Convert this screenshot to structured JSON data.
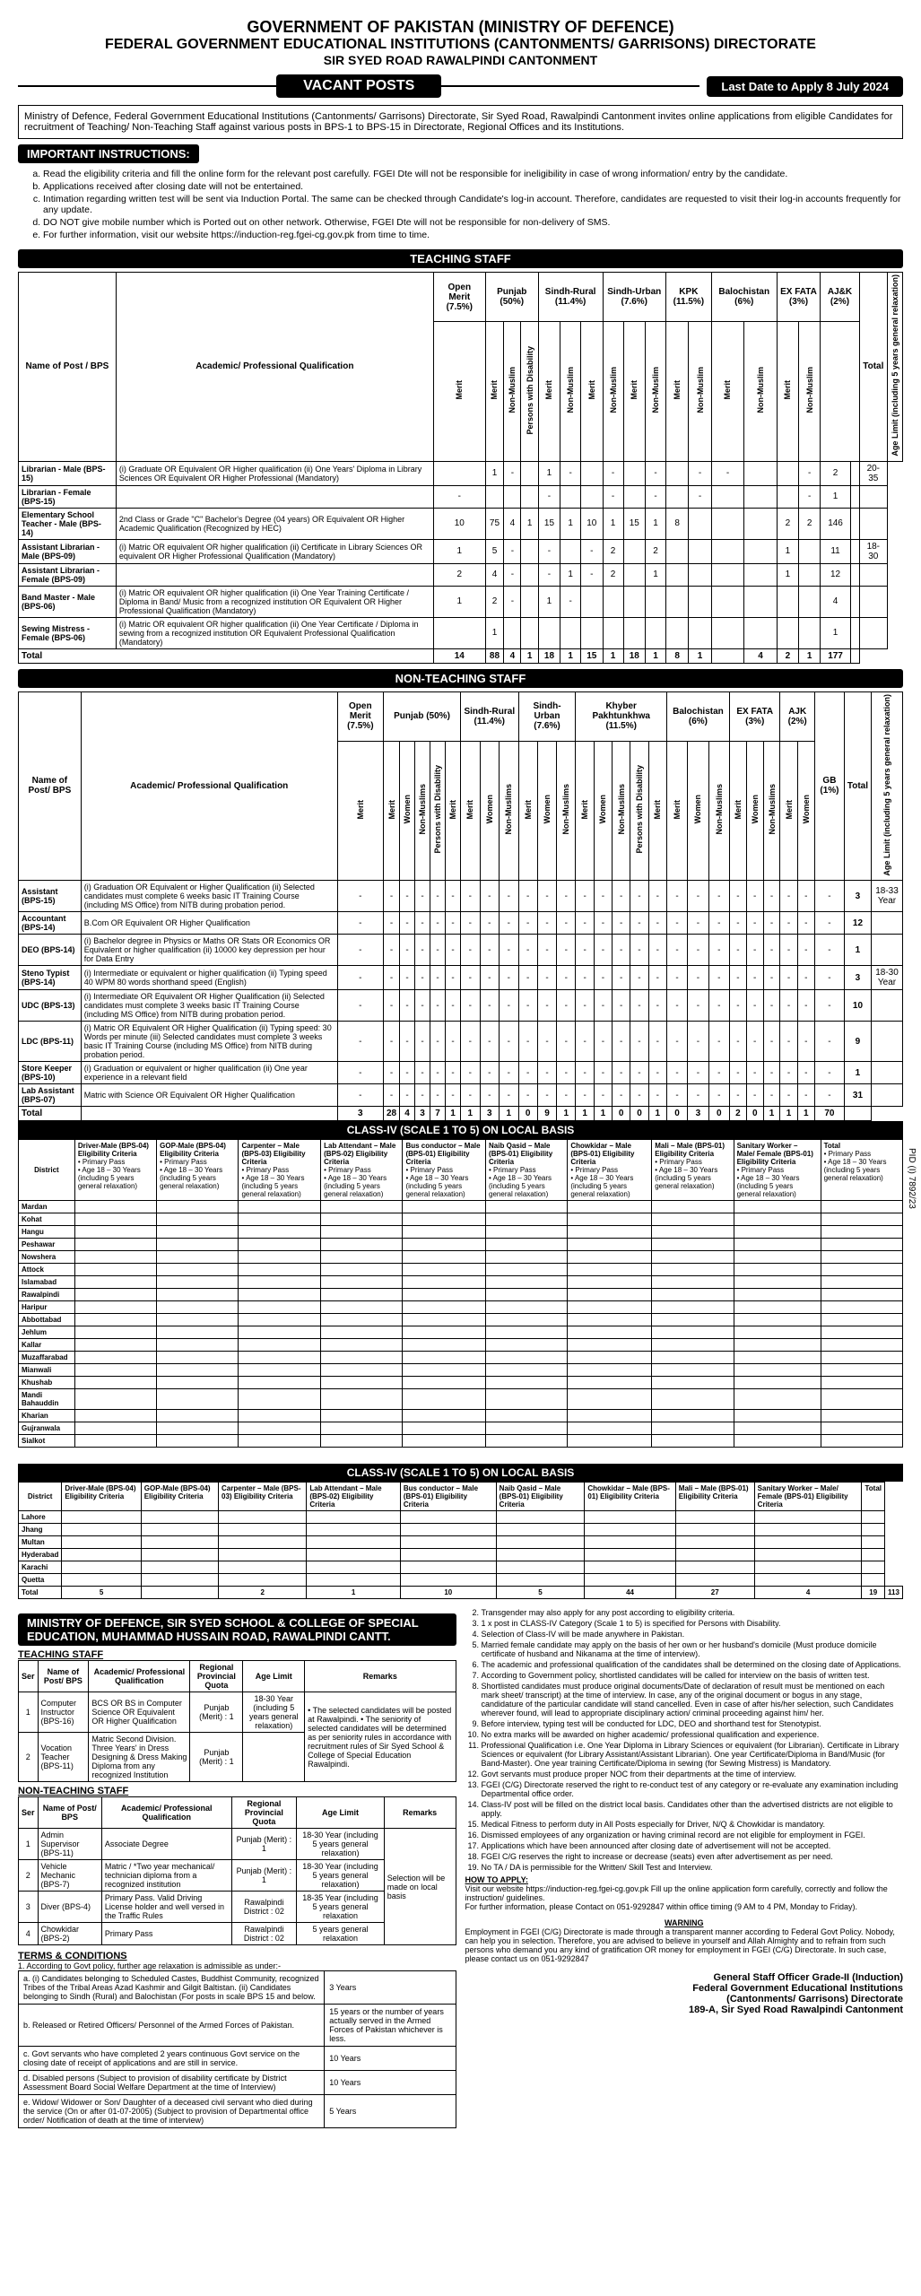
{
  "header": {
    "line1": "GOVERNMENT OF PAKISTAN (MINISTRY OF DEFENCE)",
    "line2": "FEDERAL GOVERNMENT EDUCATIONAL INSTITUTIONS (CANTONMENTS/ GARRISONS) DIRECTORATE",
    "line3": "SIR SYED ROAD RAWALPINDI CANTONMENT",
    "vacant": "VACANT POSTS",
    "last_date": "Last Date to Apply 8 July 2024"
  },
  "intro": "Ministry of Defence, Federal Government Educational Institutions (Cantonments/ Garrisons) Directorate, Sir Syed Road, Rawalpindi Cantonment invites online applications from eligible Candidates for recruitment of Teaching/ Non-Teaching Staff against various posts in BPS-1 to BPS-15 in Directorate, Regional Offices and its Institutions.",
  "instructions_header": "IMPORTANT INSTRUCTIONS:",
  "instructions": [
    "Read the eligibility criteria and fill the online form for the relevant post carefully. FGEI Dte will not be responsible for ineligibility in case of wrong information/ entry by the candidate.",
    "Applications received after closing date will not be entertained.",
    "Intimation regarding written test will be sent via Induction Portal. The same can be checked through Candidate's log-in account. Therefore, candidates are requested to visit their log-in accounts frequently for any update.",
    "DO NOT give mobile number which is Ported out on other network. Otherwise, FGEI Dte will not be responsible for non-delivery of SMS.",
    "For further information, visit our website https://induction-reg.fgei-cg.gov.pk from time to time."
  ],
  "teaching": {
    "title": "TEACHING STAFF",
    "quota_headers": [
      "Open Merit (7.5%)",
      "Punjab (50%)",
      "Sindh-Rural (11.4%)",
      "Sindh-Urban (7.6%)",
      "KPK (11.5%)",
      "Balochistan (6%)",
      "EX FATA (3%)",
      "AJ&K (2%)",
      "Total"
    ],
    "col_name": "Name of Post / BPS",
    "col_qual": "Academic/ Professional Qualification",
    "col_age": "Age Limit (including 5 years general relaxation)",
    "sub_headers": [
      "Merit",
      "Non-Muslim",
      "Persons with Disability"
    ],
    "rows": [
      {
        "name": "Librarian - Male (BPS-15)",
        "qual": "(i) Graduate OR Equivalent OR Higher qualification (ii) One Years' Diploma in Library Sciences OR Equivalent OR Higher Professional (Mandatory)",
        "cells": [
          "",
          "1",
          "-",
          "",
          "1",
          "-",
          "",
          "-",
          "",
          "-",
          "",
          "-",
          "-",
          "",
          "",
          "-",
          "2"
        ],
        "age": "20-35"
      },
      {
        "name": "Librarian - Female (BPS-15)",
        "qual": "",
        "cells": [
          "-",
          "",
          "",
          "",
          "-",
          "",
          "",
          "-",
          "",
          "-",
          "",
          "-",
          "",
          "",
          "",
          "-",
          "1"
        ],
        "age": ""
      },
      {
        "name": "Elementary School Teacher - Male (BPS-14)",
        "qual": "2nd Class or Grade \"C\" Bachelor's Degree (04 years) OR Equivalent OR Higher Academic Qualification (Recognized by HEC)",
        "cells": [
          "10",
          "75",
          "4",
          "1",
          "15",
          "1",
          "10",
          "1",
          "15",
          "1",
          "8",
          "",
          "",
          "",
          "2",
          "2",
          "146"
        ],
        "age": ""
      },
      {
        "name": "Assistant Librarian - Male (BPS-09)",
        "qual": "(i) Matric OR equivalent OR higher qualification (ii) Certificate in Library Sciences OR equivalent OR Higher Professional Qualification (Mandatory)",
        "cells": [
          "1",
          "5",
          "-",
          "",
          "-",
          "",
          "-",
          "2",
          "",
          "2",
          "",
          "",
          "",
          "",
          "1",
          "",
          "11"
        ],
        "age": "18-30"
      },
      {
        "name": "Assistant Librarian - Female (BPS-09)",
        "qual": "",
        "cells": [
          "2",
          "4",
          "-",
          "",
          "-",
          "1",
          "-",
          "2",
          "",
          "1",
          "",
          "",
          "",
          "",
          "1",
          "",
          "12"
        ],
        "age": ""
      },
      {
        "name": "Band Master - Male (BPS-06)",
        "qual": "(i) Matric OR equivalent OR higher qualification (ii) One Year Training Certificate / Diploma in Band/ Music from a recognized institution OR Equivalent OR Higher Professional Qualification (Mandatory)",
        "cells": [
          "1",
          "2",
          "-",
          "",
          "1",
          "-",
          "",
          "",
          "",
          "",
          "",
          "",
          "",
          "",
          "",
          "",
          "4"
        ],
        "age": ""
      },
      {
        "name": "Sewing Mistress - Female (BPS-06)",
        "qual": "(i) Matric OR equivalent OR higher qualification (ii) One Year Certificate / Diploma in sewing from a recognized institution OR Equivalent Professional Qualification (Mandatory)",
        "cells": [
          "",
          "1",
          "",
          "",
          "",
          "",
          "",
          "",
          "",
          "",
          "",
          "",
          "",
          "",
          "",
          "",
          "1"
        ],
        "age": ""
      }
    ],
    "total_label": "Total",
    "total_cells": [
      "14",
      "88",
      "4",
      "1",
      "18",
      "1",
      "15",
      "1",
      "18",
      "1",
      "8",
      "1",
      "",
      "4",
      "2",
      "1",
      "177"
    ]
  },
  "nonteaching": {
    "title": "NON-TEACHING STAFF",
    "quota_headers": [
      "Open Merit (7.5%)",
      "Punjab (50%)",
      "Sindh-Rural (11.4%)",
      "Sindh-Urban (7.6%)",
      "Khyber Pakhtunkhwa (11.5%)",
      "Balochistan (6%)",
      "EX FATA (3%)",
      "AJK (2%)",
      "GB (1%)",
      "Total"
    ],
    "col_name": "Name of Post/ BPS",
    "col_qual": "Academic/ Professional Qualification",
    "col_age": "Age Limit (including 5 years general relaxation)",
    "rows": [
      {
        "name": "Assistant (BPS-15)",
        "qual": "(i) Graduation OR Equivalent or Higher Qualification (ii) Selected candidates must complete 6 weeks basic IT Training Course (including MS Office) from NITB during probation period.",
        "total": "3",
        "age": "18-33 Year"
      },
      {
        "name": "Accountant (BPS-14)",
        "qual": "B.Com OR Equivalent OR Higher Qualification",
        "total": "12",
        "age": ""
      },
      {
        "name": "DEO (BPS-14)",
        "qual": "(i) Bachelor degree in Physics or Maths OR Stats OR Economics OR Equivalent or higher qualification (ii) 10000 key depression per hour for Data Entry",
        "total": "1",
        "age": ""
      },
      {
        "name": "Steno Typist (BPS-14)",
        "qual": "(i) Intermediate or equivalent or higher qualification (ii) Typing speed 40 WPM 80 words shorthand speed (English)",
        "total": "3",
        "age": "18-30 Year"
      },
      {
        "name": "UDC (BPS-13)",
        "qual": "(i) Intermediate OR Equivalent OR Higher Qualification (ii) Selected candidates must complete 3 weeks basic IT Training Course (including MS Office) from NITB during probation period.",
        "total": "10",
        "age": ""
      },
      {
        "name": "LDC (BPS-11)",
        "qual": "(i) Matric OR Equivalent OR Higher Qualification (ii) Typing speed: 30 Words per minute (iii) Selected candidates must complete 3 weeks basic IT Training Course (including MS Office) from NITB during probation period.",
        "total": "9",
        "age": ""
      },
      {
        "name": "Store Keeper (BPS-10)",
        "qual": "(i) Graduation or equivalent or higher qualification (ii) One year experience in a relevant field",
        "total": "1",
        "age": ""
      },
      {
        "name": "Lab Assistant (BPS-07)",
        "qual": "Matric with Science OR Equivalent OR Higher Qualification",
        "total": "31",
        "age": ""
      }
    ],
    "total_label": "Total",
    "grand_total": "70"
  },
  "class4a": {
    "title": "CLASS-IV (SCALE 1 TO 5) ON LOCAL BASIS",
    "district_col": "District",
    "post_headers": [
      "Driver-Male (BPS-04) Eligibility Criteria",
      "GOP-Male (BPS-04) Eligibility Criteria",
      "Carpenter – Male (BPS-03) Eligibility Criteria",
      "Lab Attendant – Male (BPS-02) Eligibility Criteria",
      "Bus conductor – Male (BPS-01) Eligibility Criteria",
      "Naib Qasid – Male (BPS-01) Eligibility Criteria",
      "Chowkidar – Male (BPS-01) Eligibility Criteria",
      "Mali – Male (BPS-01) Eligibility Criteria",
      "Sanitary Worker – Male/ Female (BPS-01) Eligibility Criteria",
      "Total"
    ],
    "districts": [
      "Mardan",
      "Kohat",
      "Hangu",
      "Peshawar",
      "Nowshera",
      "Attock",
      "Islamabad",
      "Rawalpindi",
      "Haripur",
      "Abbottabad",
      "Jehlum",
      "Kallar",
      "Muzaffarabad",
      "Mianwali",
      "Khushab",
      "Mandi Bahauddin",
      "Kharian",
      "Gujranwala",
      "Sialkot"
    ]
  },
  "class4b": {
    "title": "CLASS-IV (SCALE 1 TO 5) ON LOCAL BASIS",
    "districts": [
      "Lahore",
      "Jhang",
      "Multan",
      "Hyderabad",
      "Karachi",
      "Quetta"
    ],
    "total_label": "Total",
    "totals": [
      "5",
      "",
      "2",
      "1",
      "10",
      "5",
      "44",
      "27",
      "4",
      "19",
      "113"
    ]
  },
  "special_edu": {
    "header": "MINISTRY OF DEFENCE, SIR SYED SCHOOL & COLLEGE OF SPECIAL EDUCATION, MUHAMMAD HUSSAIN ROAD, RAWALPINDI CANTT.",
    "teaching_title": "TEACHING STAFF",
    "nonteaching_title": "NON-TEACHING STAFF",
    "cols": [
      "Ser",
      "Name of Post/ BPS",
      "Academic/ Professional Qualification",
      "Regional Provincial Quota",
      "Age Limit",
      "Remarks"
    ],
    "teaching_rows": [
      {
        "ser": "1",
        "name": "Computer Instructor (BPS-16)",
        "qual": "BCS OR BS in Computer Science OR Equivalent OR Higher Qualification",
        "quota": "Punjab (Merit) : 1",
        "age": "18-30 Year (including 5 years general relaxation)"
      },
      {
        "ser": "2",
        "name": "Vocation Teacher (BPS-11)",
        "qual": "Matric Second Division. Three Years' in Dress Designing & Dress Making Diploma from any recognized Institution",
        "quota": "Punjab (Merit) : 1",
        "age": ""
      }
    ],
    "remarks_text": "• The selected candidates will be posted at Rawalpindi.\n• The seniority of selected candidates will be determined as per seniority rules in accordance with recruitment rules of Sir Syed School & College of Special Education Rawalpindi.",
    "nonteaching_rows": [
      {
        "ser": "1",
        "name": "Admin Supervisor (BPS-11)",
        "qual": "Associate Degree",
        "quota": "Punjab (Merit) : 1",
        "age": "18-30 Year (including 5 years general relaxation)"
      },
      {
        "ser": "2",
        "name": "Vehicle Mechanic (BPS-7)",
        "qual": "Matric / *Two year mechanical/ technician diploma from a recognized institution",
        "quota": "Punjab (Merit) : 1",
        "age": "18-30 Year (including 5 years general relaxation)"
      },
      {
        "ser": "3",
        "name": "Diver (BPS-4)",
        "qual": "Primary Pass. Valid Driving License holder and well versed in the Traffic Rules",
        "quota": "Rawalpindi District : 02",
        "age": "18-35 Year (including 5 years general relaxation"
      },
      {
        "ser": "4",
        "name": "Chowkidar (BPS-2)",
        "qual": "Primary Pass",
        "quota": "Rawalpindi District : 02",
        "age": "5 years general relaxation"
      }
    ],
    "selection_note": "Selection will be made on local basis"
  },
  "terms": {
    "title": "TERMS & CONDITIONS",
    "intro": "1. According to Govt policy, further age relaxation is admissible as under:-",
    "rows": [
      {
        "label": "a. (i) Candidates belonging to Scheduled Castes, Buddhist Community, recognized Tribes of the Tribal Areas Azad Kashmir and Gilgit Baltistan.\n(ii) Candidates belonging to Sindh (Rural) and Balochistan (For posts in scale BPS 15 and below.",
        "val": "3 Years"
      },
      {
        "label": "b. Released or Retired Officers/ Personnel of the Armed Forces of Pakistan.",
        "val": "15 years or the number of years actually served in the Armed Forces of Pakistan whichever is less."
      },
      {
        "label": "c. Govt servants who have completed 2 years continuous Govt service on the closing date of receipt of applications and are still in service.",
        "val": "10 Years"
      },
      {
        "label": "d. Disabled persons (Subject to provision of disability certificate by District Assessment Board Social Welfare Department at the time of Interview)",
        "val": "10 Years"
      },
      {
        "label": "e. Widow/ Widower or Son/ Daughter of a deceased civil servant who died during the service (On or after 01-07-2005) (Subject to provision of Departmental office order/ Notification of death at the time of interview)",
        "val": "5 Years"
      }
    ]
  },
  "right_notes": [
    "Transgender may also apply for any post according to eligibility criteria.",
    "1 x post in CLASS-IV Category (Scale 1 to 5) is specified for Persons with Disability.",
    "Selection of Class-IV will be made anywhere in Pakistan.",
    "Married female candidate may apply on the basis of her own or her husband's domicile (Must produce domicile certificate of husband and Nikanama at the time of interview).",
    "The academic and professional qualification of the candidates shall be determined on the closing date of Applications.",
    "According to Government policy, shortlisted candidates will be called for interview on the basis of written test.",
    "Shortlisted candidates must produce original documents/Date of declaration of result must be mentioned on each mark sheet/ transcript) at the time of interview. In case, any of the original document or bogus in any stage, candidature of the particular candidate will stand cancelled. Even in case of after his/her selection, such Candidates wherever found, will lead to appropriate disciplinary action/ criminal proceeding against him/ her.",
    "Before interview, typing test will be conducted for LDC, DEO and shorthand test for Stenotypist.",
    "No extra marks will be awarded on higher academic/ professional qualification and experience.",
    "Professional Qualification i.e. One Year Diploma in Library Sciences or equivalent (for Librarian). Certificate in Library Sciences or equivalent (for Library Assistant/Assistant Librarian). One year Certificate/Diploma in Band/Music (for Band-Master). One year training Certificate/Diploma in sewing (for Sewing Mistress) is Mandatory.",
    "Govt servants must produce proper NOC from their departments at the time of interview.",
    "FGEI (C/G) Directorate reserved the right to re-conduct test of any category or re-evaluate any examination including Departmental office order.",
    "Class-IV post will be filled on the district local basis. Candidates other than the advertised districts are not eligible to apply.",
    "Medical Fitness to perform duty in All Posts especially for Driver, N/Q & Chowkidar is mandatory.",
    "Dismissed employees of any organization or having criminal record are not eligible for employment in FGEI.",
    "Applications which have been announced after closing date of advertisement will not be accepted.",
    "FGEI C/G reserves the right to increase or decrease (seats) even after advertisement as per need.",
    "No TA / DA is permissible for the Written/ Skill Test and Interview."
  ],
  "how_to_apply": {
    "title": "HOW TO APPLY:",
    "lines": [
      "Visit our website https://induction-reg.fgei-cg.gov.pk Fill up the online application form carefully, correctly and follow the instruction/ guidelines.",
      "For further information, please Contact on 051-9292847 within office timing (9 AM to 4 PM, Monday to Friday)."
    ]
  },
  "warning": {
    "title": "WARNING",
    "text": "Employment in FGEI (C/G) Directorate is made through a transparent manner according to Federal Govt Policy. Nobody, can help you in selection. Therefore, you are advised to believe in yourself and Allah Almighty and to refrain from such persons who demand you any kind of gratification OR money for employment in FGEI (C/G) Directorate. In such case, please contact us on 051-9292847"
  },
  "signature": {
    "line1": "General Staff Officer Grade-II (Induction)",
    "line2": "Federal Government Educational Institutions",
    "line3": "(Cantonments/ Garrisons) Directorate",
    "line4": "189-A, Sir Syed Road Rawalpindi Cantonment"
  },
  "pid": "PID (I) 7892/23"
}
